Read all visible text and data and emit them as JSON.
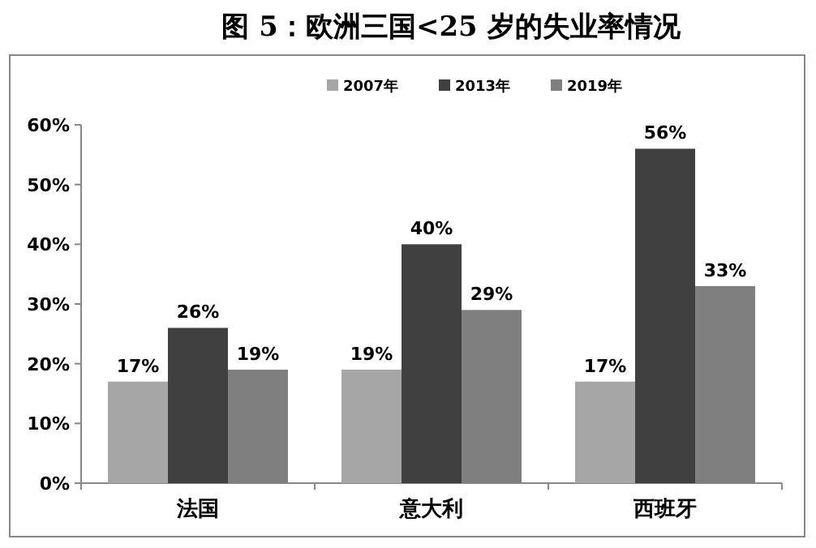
{
  "chart_data": {
    "type": "bar",
    "title": "图 5：欧洲三国<25 岁的失业率情况",
    "categories": [
      "法国",
      "意大利",
      "西班牙"
    ],
    "series": [
      {
        "name": "2007年",
        "color": "#a6a6a6",
        "values": [
          17,
          19,
          17
        ],
        "value_labels": [
          "17%",
          "19%",
          "17%"
        ]
      },
      {
        "name": "2013年",
        "color": "#404040",
        "values": [
          26,
          40,
          56
        ],
        "value_labels": [
          "26%",
          "40%",
          "56%"
        ]
      },
      {
        "name": "2019年",
        "color": "#7f7f7f",
        "values": [
          19,
          29,
          33
        ],
        "value_labels": [
          "19%",
          "29%",
          "33%"
        ]
      }
    ],
    "ylim": [
      0,
      60
    ],
    "yticks": [
      {
        "value": 0,
        "label": "0%"
      },
      {
        "value": 10,
        "label": "10%"
      },
      {
        "value": 20,
        "label": "20%"
      },
      {
        "value": 30,
        "label": "30%"
      },
      {
        "value": 40,
        "label": "40%"
      },
      {
        "value": 50,
        "label": "50%"
      },
      {
        "value": 60,
        "label": "60%"
      }
    ],
    "legend": "top",
    "grid": false
  }
}
